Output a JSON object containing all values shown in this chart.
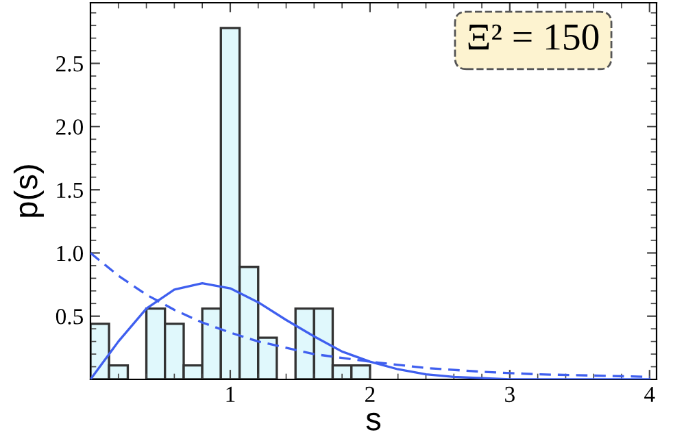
{
  "chart_data": {
    "type": "histogram",
    "xlabel": "s",
    "ylabel": "p(s)",
    "bins": [
      0,
      0.133,
      0.267,
      0.4,
      0.533,
      0.667,
      0.8,
      0.933,
      1.067,
      1.2,
      1.333,
      1.467,
      1.6,
      1.733,
      1.867,
      2.0
    ],
    "values": [
      0.44,
      0.11,
      0,
      0.56,
      0.44,
      0.11,
      0.56,
      2.78,
      0.89,
      0.33,
      0,
      0.56,
      0.56,
      0.11,
      0.11
    ],
    "color": "#e0f8fc",
    "series": [
      {
        "type": "line",
        "color": "#3f5fef",
        "line_style": "solid",
        "x": [
          0,
          0.2,
          0.4,
          0.6,
          0.8,
          1.0,
          1.2,
          1.4,
          1.6,
          1.8,
          2.0,
          2.2,
          2.4,
          2.6,
          2.8,
          3.0,
          3.5,
          4.0
        ],
        "values": [
          0,
          0.3,
          0.56,
          0.71,
          0.76,
          0.72,
          0.61,
          0.47,
          0.34,
          0.22,
          0.14,
          0.08,
          0.04,
          0.02,
          0.01,
          0,
          0,
          0
        ]
      },
      {
        "type": "line",
        "color": "#3f5fef",
        "line_style": "dashed",
        "x": [
          0,
          0.2,
          0.4,
          0.6,
          0.8,
          1.0,
          1.2,
          1.4,
          1.6,
          1.8,
          2.0,
          2.4,
          2.8,
          3.2,
          3.6,
          4.0
        ],
        "values": [
          1.0,
          0.82,
          0.67,
          0.55,
          0.45,
          0.37,
          0.3,
          0.25,
          0.2,
          0.17,
          0.14,
          0.09,
          0.06,
          0.04,
          0.03,
          0.02
        ]
      }
    ],
    "xlim": [
      0,
      4.05
    ],
    "xticks": [
      1,
      2,
      3,
      4
    ],
    "ylim": [
      0,
      2.98
    ],
    "yticks": [
      0.5,
      {
        "value": 1,
        "label": "1.0"
      },
      1.5,
      {
        "value": 2,
        "label": "2.0"
      },
      2.5
    ],
    "annotations": [
      "Ξ² = 150"
    ],
    "grid": false,
    "legend": false
  }
}
